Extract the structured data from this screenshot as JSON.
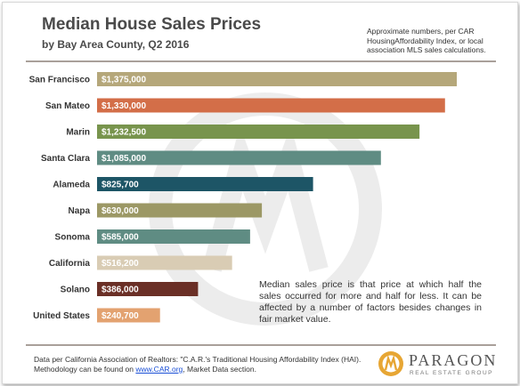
{
  "header": {
    "title": "Median House Sales Prices",
    "subtitle": "by Bay Area County, Q2 2016",
    "note_lines": [
      "Approximate numbers, per CAR",
      "HousingAffordability Index, or local",
      "association MLS sales calculations."
    ]
  },
  "chart_data": {
    "type": "bar",
    "orientation": "horizontal",
    "title": "Median House Sales Prices",
    "subtitle": "by Bay Area County, Q2 2016",
    "categories": [
      "San Francisco",
      "San Mateo",
      "Marin",
      "Santa Clara",
      "Alameda",
      "Napa",
      "Sonoma",
      "California",
      "Solano",
      "United States"
    ],
    "values": [
      1375000,
      1330000,
      1232500,
      1085000,
      825700,
      630000,
      585000,
      516200,
      386000,
      240700
    ],
    "value_labels": [
      "$1,375,000",
      "$1,330,000",
      "$1,232,500",
      "$1,085,000",
      "$825,700",
      "$630,000",
      "$585,000",
      "$516,200",
      "$386,000",
      "$240,700"
    ],
    "bar_colors": [
      "#b5a77a",
      "#d36e48",
      "#78944d",
      "#5f8c83",
      "#1d5566",
      "#9c9865",
      "#5f8c83",
      "#d9ccb4",
      "#6a2f26",
      "#e3a270"
    ],
    "xlim": [
      0,
      1400000
    ],
    "grid": false,
    "legend": "none"
  },
  "annotation": {
    "text": "Median sales price is that price at which half the sales occurred for more and half for less. It can be affected by a number of factors besides changes in fair market value."
  },
  "footer": {
    "line1": "Data per California Association of Realtors: \"C.A.R.'s Traditional Housing Affordability Index (HAI).",
    "line2_prefix": "Methodology can be found on ",
    "line2_link": "www.CAR.org",
    "line2_suffix": ", Market Data section."
  },
  "logo": {
    "name": "PARAGON",
    "tagline": "REAL ESTATE GROUP"
  }
}
